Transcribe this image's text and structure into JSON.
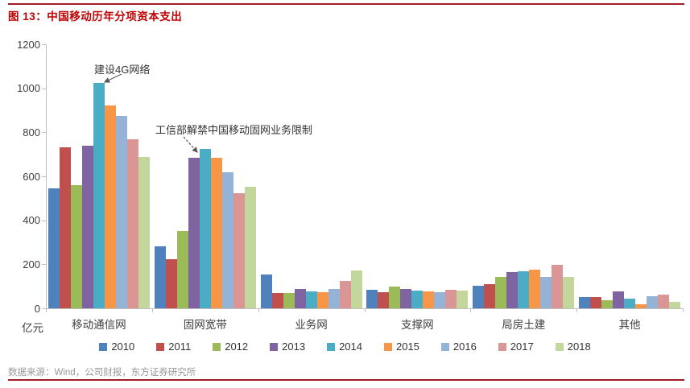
{
  "header": {
    "title": "图 13：中国移动历年分项资本支出"
  },
  "footer": {
    "source": "数据来源：Wind，公司财报，东方证券研究所"
  },
  "colors": {
    "title_red": "#C00000",
    "rule_red": "#A21C26",
    "axis_gray": "#BFBFBF",
    "annotation_arrow": "#595959"
  },
  "chart_data": {
    "type": "bar",
    "title": "中国移动历年分项资本支出",
    "unit_label": "亿元",
    "ylabel": "亿元",
    "xlabel": "",
    "ylim": [
      0,
      1200
    ],
    "yticks": [
      0,
      200,
      400,
      600,
      800,
      1000,
      1200
    ],
    "grid": false,
    "legend_position": "bottom",
    "categories": [
      "移动通信网",
      "固网宽带",
      "业务网",
      "支撑网",
      "局房土建",
      "其他"
    ],
    "series": [
      {
        "name": "2010",
        "color": "#4F81BD",
        "values": [
          545,
          280,
          155,
          85,
          102,
          50
        ]
      },
      {
        "name": "2011",
        "color": "#C0504D",
        "values": [
          730,
          225,
          70,
          72,
          110,
          52
        ]
      },
      {
        "name": "2012",
        "color": "#9BBB59",
        "values": [
          560,
          350,
          68,
          98,
          142,
          38
        ]
      },
      {
        "name": "2013",
        "color": "#8064A2",
        "values": [
          740,
          685,
          86,
          88,
          163,
          78
        ]
      },
      {
        "name": "2014",
        "color": "#4BACC6",
        "values": [
          1025,
          725,
          78,
          81,
          170,
          45
        ]
      },
      {
        "name": "2015",
        "color": "#F79646",
        "values": [
          922,
          685,
          73,
          76,
          176,
          18
        ]
      },
      {
        "name": "2016",
        "color": "#95B3D7",
        "values": [
          875,
          620,
          89,
          73,
          142,
          55
        ]
      },
      {
        "name": "2017",
        "color": "#D99694",
        "values": [
          767,
          525,
          126,
          83,
          196,
          62
        ]
      },
      {
        "name": "2018",
        "color": "#C3D69B",
        "values": [
          688,
          552,
          171,
          80,
          142,
          28
        ]
      }
    ],
    "annotations": [
      {
        "text": "建设4G网络",
        "points_to": "2014 移动通信网",
        "arrow_style": "solid"
      },
      {
        "text": "工信部解禁中国移动固网业务限制",
        "points_to": "2013 固网宽带",
        "arrow_style": "dashed"
      }
    ]
  }
}
